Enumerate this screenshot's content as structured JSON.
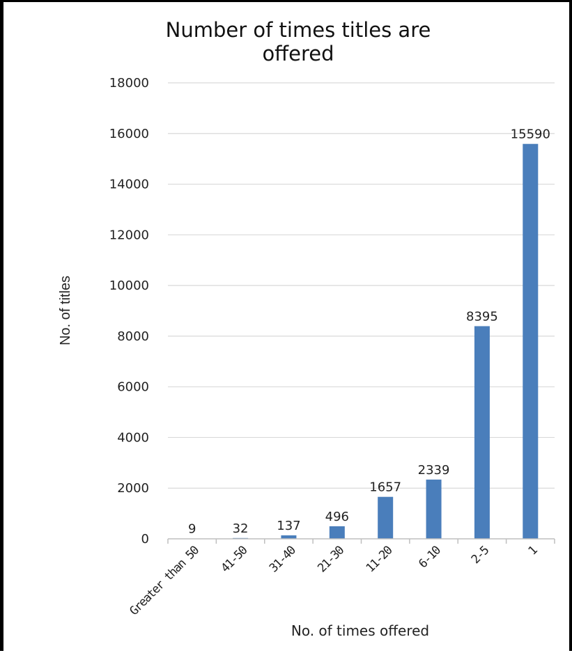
{
  "chart_data": {
    "type": "bar",
    "title_lines": [
      "Number of times titles are",
      "offered"
    ],
    "xlabel": "No. of times offered",
    "ylabel": "No. of titles",
    "categories": [
      "Greater than 50",
      "41-50",
      "31-40",
      "21-30",
      "11-20",
      "6-10",
      "2-5",
      "1"
    ],
    "values": [
      9,
      32,
      137,
      496,
      1657,
      2339,
      8395,
      15590
    ],
    "data_labels": [
      "9",
      "32",
      "137",
      "496",
      "1657",
      "2339",
      "8395",
      "15590"
    ],
    "ylim": [
      0,
      18000
    ],
    "yticks": [
      "0",
      "2000",
      "4000",
      "6000",
      "8000",
      "10000",
      "12000",
      "14000",
      "16000",
      "18000"
    ],
    "grid": true,
    "legend": "none",
    "bar_color": "#4a7ebb",
    "grid_color": "#d9d9d9"
  }
}
